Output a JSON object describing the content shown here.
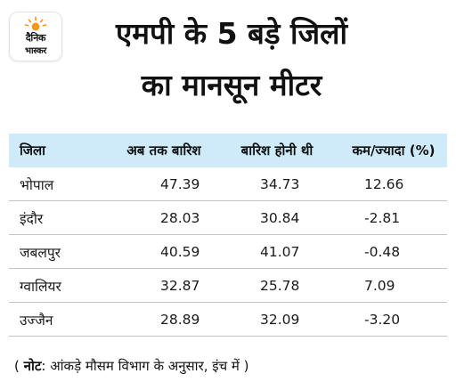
{
  "logo": {
    "line1": "दैनिक",
    "line2": "भास्कर",
    "sun_color": "#f7941d"
  },
  "title": {
    "line1": "एमपी के 5 बड़े जिलों",
    "line2": "का मानसून मीटर"
  },
  "table": {
    "header_bg": "#cfeaf8",
    "columns": [
      "जिला",
      "अब तक बारिश",
      "बारिश होनी थी",
      "कम/ज्यादा (%)"
    ],
    "rows": [
      [
        "भोपाल",
        "47.39",
        "34.73",
        "12.66"
      ],
      [
        "इंदौर",
        "28.03",
        "30.84",
        "-2.81"
      ],
      [
        "जबलपुर",
        "40.59",
        "41.07",
        "-0.48"
      ],
      [
        "ग्वालियर",
        "32.87",
        "25.78",
        "7.09"
      ],
      [
        "उज्जैन",
        "28.89",
        "32.09",
        "-3.20"
      ]
    ]
  },
  "note": {
    "open": "( ",
    "label": "नोट",
    "text": ": आंकड़े मौसम विभाग के अनुसार, इंच में )"
  }
}
